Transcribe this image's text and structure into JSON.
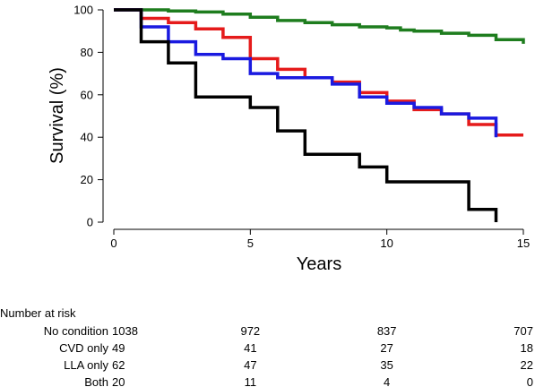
{
  "chart_data": {
    "type": "line",
    "step": true,
    "xlabel": "Years",
    "ylabel": "Survival (%)",
    "xlim": [
      0,
      15
    ],
    "ylim": [
      0,
      100
    ],
    "xticks": [
      "0",
      "5",
      "10",
      "15"
    ],
    "yticks": [
      "0",
      "20",
      "40",
      "60",
      "80",
      "100"
    ],
    "grid": false,
    "series": [
      {
        "color": "#1e7d1e",
        "points": [
          [
            0,
            100
          ],
          [
            1,
            100
          ],
          [
            2,
            99.5
          ],
          [
            3,
            99
          ],
          [
            4,
            98
          ],
          [
            5,
            96.5
          ],
          [
            6,
            95
          ],
          [
            7,
            94
          ],
          [
            8,
            93
          ],
          [
            9,
            92
          ],
          [
            10,
            91.5
          ],
          [
            10.5,
            90.5
          ],
          [
            11,
            90
          ],
          [
            12,
            89
          ],
          [
            13,
            88
          ],
          [
            14,
            86
          ],
          [
            15,
            84
          ]
        ]
      },
      {
        "color": "#e51b1b",
        "points": [
          [
            0,
            100
          ],
          [
            1,
            96
          ],
          [
            2,
            94
          ],
          [
            3,
            91
          ],
          [
            4,
            87
          ],
          [
            5,
            77
          ],
          [
            6,
            72
          ],
          [
            7,
            68
          ],
          [
            8,
            66
          ],
          [
            9,
            61
          ],
          [
            10,
            57
          ],
          [
            11,
            53
          ],
          [
            12,
            51
          ],
          [
            13,
            46
          ],
          [
            14,
            41
          ],
          [
            15,
            41
          ]
        ]
      },
      {
        "color": "#1a1ae0",
        "points": [
          [
            0,
            100
          ],
          [
            1,
            92
          ],
          [
            2,
            85
          ],
          [
            3,
            79
          ],
          [
            4,
            77
          ],
          [
            5,
            70
          ],
          [
            6,
            68
          ],
          [
            7,
            68
          ],
          [
            8,
            65
          ],
          [
            9,
            59
          ],
          [
            10,
            56
          ],
          [
            11,
            54
          ],
          [
            12,
            51
          ],
          [
            13,
            49
          ],
          [
            14,
            40
          ]
        ]
      },
      {
        "color": "#000000",
        "points": [
          [
            0,
            100
          ],
          [
            1,
            85
          ],
          [
            2,
            75
          ],
          [
            3,
            59
          ],
          [
            5,
            54
          ],
          [
            6,
            43
          ],
          [
            7,
            32
          ],
          [
            9,
            26
          ],
          [
            10,
            19
          ],
          [
            11,
            19
          ],
          [
            13,
            6
          ],
          [
            14,
            0
          ]
        ]
      }
    ]
  },
  "risk_table": {
    "title": "Number at risk",
    "rows": [
      {
        "label": "No condition",
        "values": [
          "1038",
          "972",
          "837",
          "707"
        ]
      },
      {
        "label": "CVD only",
        "values": [
          "49",
          "41",
          "27",
          "18"
        ]
      },
      {
        "label": "LLA only",
        "values": [
          "62",
          "47",
          "35",
          "22"
        ]
      },
      {
        "label": "Both",
        "values": [
          "20",
          "11",
          "4",
          "0"
        ]
      }
    ]
  }
}
